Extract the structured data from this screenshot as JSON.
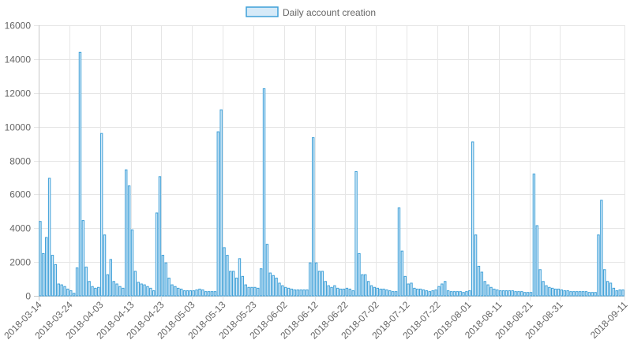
{
  "chart_data": {
    "type": "bar",
    "series": [
      {
        "name": "Daily account creation",
        "start_date": "2018-03-14",
        "values": [
          4400,
          2500,
          3450,
          6950,
          2400,
          1850,
          700,
          650,
          550,
          400,
          300,
          150,
          1650,
          14400,
          4450,
          1700,
          850,
          550,
          450,
          500,
          9600,
          3600,
          1250,
          2150,
          850,
          700,
          550,
          450,
          7450,
          6500,
          3900,
          1450,
          800,
          700,
          650,
          550,
          450,
          300,
          4900,
          7050,
          2400,
          1950,
          1050,
          650,
          550,
          450,
          400,
          300,
          300,
          300,
          300,
          350,
          400,
          350,
          250,
          250,
          250,
          250,
          9700,
          11000,
          2850,
          2400,
          1450,
          1450,
          1050,
          2200,
          1150,
          650,
          500,
          500,
          500,
          450,
          1600,
          12250,
          3050,
          1350,
          1200,
          1050,
          750,
          600,
          500,
          450,
          400,
          350,
          350,
          350,
          350,
          350,
          1950,
          9350,
          1950,
          1450,
          1450,
          850,
          600,
          500,
          600,
          450,
          400,
          400,
          450,
          400,
          300,
          7350,
          2500,
          1250,
          1250,
          850,
          600,
          500,
          450,
          400,
          400,
          350,
          300,
          250,
          250,
          5200,
          2650,
          1150,
          700,
          750,
          450,
          400,
          400,
          350,
          300,
          250,
          300,
          350,
          550,
          700,
          850,
          300,
          250,
          250,
          250,
          250,
          200,
          250,
          300,
          9100,
          3600,
          1750,
          1400,
          850,
          650,
          500,
          400,
          350,
          300,
          300,
          300,
          300,
          300,
          250,
          250,
          250,
          200,
          200,
          200,
          7200,
          4150,
          1550,
          850,
          600,
          500,
          450,
          400,
          400,
          350,
          300,
          300,
          250,
          250,
          250,
          250,
          250,
          250,
          200,
          200,
          200,
          3600,
          5650,
          1550,
          850,
          750,
          450,
          300,
          350,
          350
        ]
      }
    ],
    "x_tick_labels": [
      "2018-03-14",
      "2018-03-24",
      "2018-04-03",
      "2018-04-13",
      "2018-04-23",
      "2018-05-03",
      "2018-05-13",
      "2018-05-23",
      "2018-06-02",
      "2018-06-12",
      "2018-06-22",
      "2018-07-02",
      "2018-07-12",
      "2018-07-22",
      "2018-08-01",
      "2018-08-11",
      "2018-08-21",
      "2018-08-31",
      "2018-09-11"
    ],
    "y_tick_labels": [
      "0",
      "2000",
      "4000",
      "6000",
      "8000",
      "10000",
      "12000",
      "14000",
      "16000"
    ],
    "ylim": [
      0,
      16000
    ],
    "grid": true,
    "legend_position": "top-center",
    "colors": {
      "bar_fill": "#d6eaf8",
      "bar_stroke": "#3ea0d8",
      "grid": "#e6e6e6",
      "axis": "#c8c8c8",
      "text": "#666666"
    }
  }
}
